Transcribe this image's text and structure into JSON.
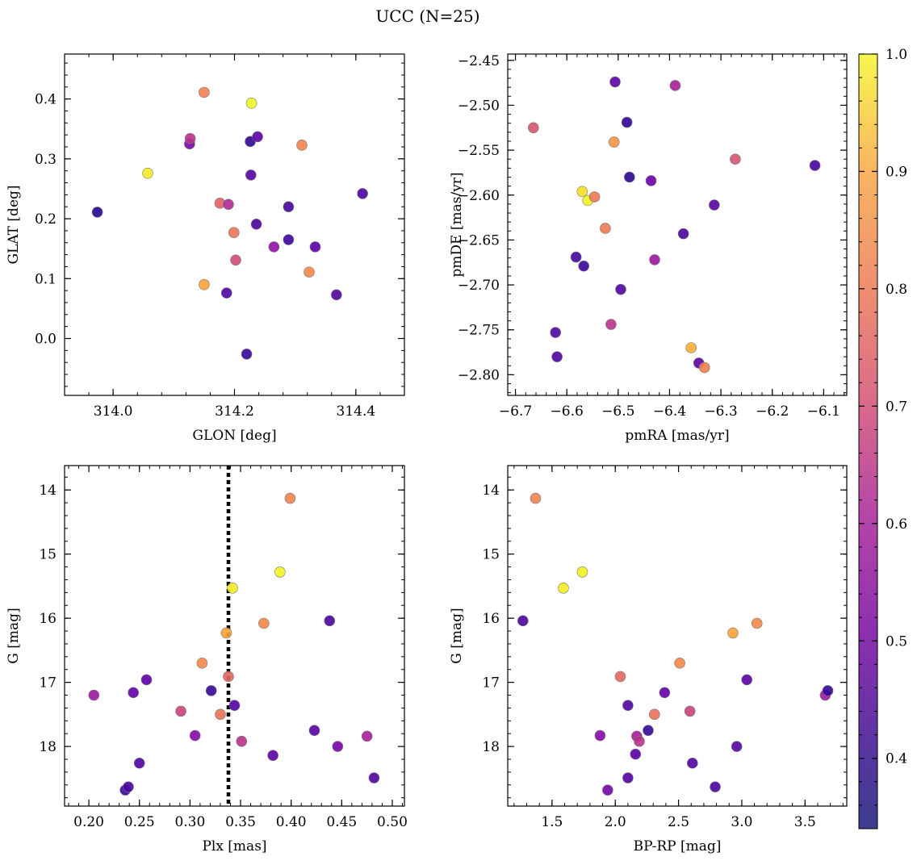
{
  "title": "UCC (N=25)",
  "colorbar": {
    "min": 0.34,
    "max": 1.0,
    "ticks": [
      "0.4",
      "0.5",
      "0.6",
      "0.7",
      "0.8",
      "0.9",
      "1.0"
    ],
    "tick_values": [
      0.4,
      0.5,
      0.6,
      0.7,
      0.8,
      0.9,
      1.0
    ],
    "colormap": "plasma"
  },
  "chart_data": [
    {
      "type": "scatter",
      "xlabel": "GLON [deg]",
      "ylabel": "GLAT [deg]",
      "xlim": [
        313.92,
        314.48
      ],
      "ylim": [
        -0.095,
        0.475
      ],
      "xticks": [
        314.0,
        314.2,
        314.4
      ],
      "xtick_labels": [
        "314.0",
        "314.2",
        "314.4"
      ],
      "yticks": [
        0.0,
        0.1,
        0.2,
        0.3,
        0.4
      ],
      "ytick_labels": [
        "0.0",
        "0.1",
        "0.2",
        "0.3",
        "0.4"
      ],
      "inverted_y": false,
      "points": [
        {
          "x": 313.974,
          "y": 0.211,
          "c": 0.37
        },
        {
          "x": 314.057,
          "y": 0.276,
          "c": 0.98
        },
        {
          "x": 314.126,
          "y": 0.325,
          "c": 0.5
        },
        {
          "x": 314.127,
          "y": 0.334,
          "c": 0.62
        },
        {
          "x": 314.15,
          "y": 0.411,
          "c": 0.79
        },
        {
          "x": 314.15,
          "y": 0.09,
          "c": 0.86
        },
        {
          "x": 314.176,
          "y": 0.226,
          "c": 0.73
        },
        {
          "x": 314.187,
          "y": 0.076,
          "c": 0.43
        },
        {
          "x": 314.19,
          "y": 0.224,
          "c": 0.6
        },
        {
          "x": 314.199,
          "y": 0.177,
          "c": 0.77
        },
        {
          "x": 314.202,
          "y": 0.131,
          "c": 0.68
        },
        {
          "x": 314.22,
          "y": -0.026,
          "c": 0.39
        },
        {
          "x": 314.226,
          "y": 0.329,
          "c": 0.38
        },
        {
          "x": 314.227,
          "y": 0.273,
          "c": 0.44
        },
        {
          "x": 314.228,
          "y": 0.393,
          "c": 1.0
        },
        {
          "x": 314.236,
          "y": 0.191,
          "c": 0.42
        },
        {
          "x": 314.238,
          "y": 0.337,
          "c": 0.45
        },
        {
          "x": 314.265,
          "y": 0.153,
          "c": 0.54
        },
        {
          "x": 314.289,
          "y": 0.22,
          "c": 0.41
        },
        {
          "x": 314.289,
          "y": 0.165,
          "c": 0.4
        },
        {
          "x": 314.311,
          "y": 0.323,
          "c": 0.8
        },
        {
          "x": 314.323,
          "y": 0.111,
          "c": 0.81
        },
        {
          "x": 314.333,
          "y": 0.153,
          "c": 0.45
        },
        {
          "x": 314.368,
          "y": 0.073,
          "c": 0.43
        },
        {
          "x": 314.411,
          "y": 0.242,
          "c": 0.42
        }
      ]
    },
    {
      "type": "scatter",
      "xlabel": "pmRA [mas/yr]",
      "ylabel": "pmDE [mas/yr]",
      "xlim": [
        -6.715,
        -6.055
      ],
      "ylim": [
        -2.823,
        -2.443
      ],
      "xticks": [
        -6.7,
        -6.6,
        -6.5,
        -6.4,
        -6.3,
        -6.2,
        -6.1
      ],
      "xtick_labels": [
        "−6.7",
        "−6.6",
        "−6.5",
        "−6.4",
        "−6.3",
        "−6.2",
        "−6.1"
      ],
      "yticks": [
        -2.8,
        -2.75,
        -2.7,
        -2.65,
        -2.6,
        -2.55,
        -2.5,
        -2.45
      ],
      "ytick_labels": [
        "−2.80",
        "−2.75",
        "−2.70",
        "−2.65",
        "−2.60",
        "−2.55",
        "−2.50",
        "−2.45"
      ],
      "inverted_y": false,
      "points": [
        {
          "x": -6.665,
          "y": -2.525,
          "c": 0.7
        },
        {
          "x": -6.622,
          "y": -2.753,
          "c": 0.43
        },
        {
          "x": -6.619,
          "y": -2.78,
          "c": 0.42
        },
        {
          "x": -6.582,
          "y": -2.669,
          "c": 0.41
        },
        {
          "x": -6.57,
          "y": -2.596,
          "c": 0.96
        },
        {
          "x": -6.567,
          "y": -2.679,
          "c": 0.4
        },
        {
          "x": -6.559,
          "y": -2.606,
          "c": 0.99
        },
        {
          "x": -6.546,
          "y": -2.602,
          "c": 0.78
        },
        {
          "x": -6.525,
          "y": -2.637,
          "c": 0.78
        },
        {
          "x": -6.514,
          "y": -2.744,
          "c": 0.62
        },
        {
          "x": -6.508,
          "y": -2.541,
          "c": 0.83
        },
        {
          "x": -6.506,
          "y": -2.474,
          "c": 0.45
        },
        {
          "x": -6.495,
          "y": -2.705,
          "c": 0.43
        },
        {
          "x": -6.483,
          "y": -2.519,
          "c": 0.38
        },
        {
          "x": -6.478,
          "y": -2.58,
          "c": 0.38
        },
        {
          "x": -6.436,
          "y": -2.584,
          "c": 0.47
        },
        {
          "x": -6.429,
          "y": -2.672,
          "c": 0.56
        },
        {
          "x": -6.389,
          "y": -2.478,
          "c": 0.58
        },
        {
          "x": -6.373,
          "y": -2.643,
          "c": 0.42
        },
        {
          "x": -6.358,
          "y": -2.77,
          "c": 0.88
        },
        {
          "x": -6.343,
          "y": -2.787,
          "c": 0.45
        },
        {
          "x": -6.332,
          "y": -2.792,
          "c": 0.79
        },
        {
          "x": -6.313,
          "y": -2.611,
          "c": 0.44
        },
        {
          "x": -6.272,
          "y": -2.56,
          "c": 0.7
        },
        {
          "x": -6.117,
          "y": -2.567,
          "c": 0.42
        }
      ]
    },
    {
      "type": "scatter",
      "xlabel": "Plx [mas]",
      "ylabel": "G [mag]",
      "xlim": [
        0.176,
        0.512
      ],
      "ylim": [
        18.93,
        13.62
      ],
      "xticks": [
        0.2,
        0.25,
        0.3,
        0.35,
        0.4,
        0.45,
        0.5
      ],
      "xtick_labels": [
        "0.20",
        "0.25",
        "0.30",
        "0.35",
        "0.40",
        "0.45",
        "0.50"
      ],
      "yticks": [
        14,
        15,
        16,
        17,
        18
      ],
      "ytick_labels": [
        "14",
        "15",
        "16",
        "17",
        "18"
      ],
      "inverted_y": true,
      "vline": 0.338,
      "points": [
        {
          "x": 0.205,
          "y": 17.2,
          "c": 0.56
        },
        {
          "x": 0.236,
          "y": 18.68,
          "c": 0.4
        },
        {
          "x": 0.239,
          "y": 18.63,
          "c": 0.42
        },
        {
          "x": 0.244,
          "y": 17.16,
          "c": 0.46
        },
        {
          "x": 0.25,
          "y": 18.26,
          "c": 0.43
        },
        {
          "x": 0.257,
          "y": 16.96,
          "c": 0.45
        },
        {
          "x": 0.291,
          "y": 17.45,
          "c": 0.66
        },
        {
          "x": 0.305,
          "y": 17.83,
          "c": 0.52
        },
        {
          "x": 0.312,
          "y": 16.7,
          "c": 0.81
        },
        {
          "x": 0.321,
          "y": 17.13,
          "c": 0.39
        },
        {
          "x": 0.33,
          "y": 17.5,
          "c": 0.76
        },
        {
          "x": 0.336,
          "y": 16.23,
          "c": 0.86
        },
        {
          "x": 0.338,
          "y": 16.91,
          "c": 0.74
        },
        {
          "x": 0.342,
          "y": 15.53,
          "c": 0.98
        },
        {
          "x": 0.344,
          "y": 17.36,
          "c": 0.43
        },
        {
          "x": 0.351,
          "y": 17.92,
          "c": 0.62
        },
        {
          "x": 0.373,
          "y": 16.08,
          "c": 0.81
        },
        {
          "x": 0.382,
          "y": 18.14,
          "c": 0.45
        },
        {
          "x": 0.389,
          "y": 15.28,
          "c": 0.99
        },
        {
          "x": 0.399,
          "y": 14.13,
          "c": 0.8
        },
        {
          "x": 0.423,
          "y": 17.75,
          "c": 0.44
        },
        {
          "x": 0.438,
          "y": 16.04,
          "c": 0.42
        },
        {
          "x": 0.446,
          "y": 18.0,
          "c": 0.49
        },
        {
          "x": 0.475,
          "y": 17.84,
          "c": 0.58
        },
        {
          "x": 0.482,
          "y": 18.49,
          "c": 0.43
        }
      ]
    },
    {
      "type": "scatter",
      "xlabel": "BP-RP [mag]",
      "ylabel": "G [mag]",
      "xlim": [
        1.15,
        3.83
      ],
      "ylim": [
        18.93,
        13.62
      ],
      "xticks": [
        1.5,
        2.0,
        2.5,
        3.0,
        3.5
      ],
      "xtick_labels": [
        "1.5",
        "2.0",
        "2.5",
        "3.0",
        "3.5"
      ],
      "yticks": [
        14,
        15,
        16,
        17,
        18
      ],
      "ytick_labels": [
        "14",
        "15",
        "16",
        "17",
        "18"
      ],
      "inverted_y": true,
      "points": [
        {
          "x": 1.27,
          "y": 16.04,
          "c": 0.42
        },
        {
          "x": 1.37,
          "y": 14.13,
          "c": 0.8
        },
        {
          "x": 1.59,
          "y": 15.53,
          "c": 0.98
        },
        {
          "x": 1.74,
          "y": 15.28,
          "c": 0.99
        },
        {
          "x": 1.88,
          "y": 17.83,
          "c": 0.52
        },
        {
          "x": 1.94,
          "y": 18.68,
          "c": 0.49
        },
        {
          "x": 2.04,
          "y": 16.91,
          "c": 0.74
        },
        {
          "x": 2.1,
          "y": 18.49,
          "c": 0.43
        },
        {
          "x": 2.1,
          "y": 17.36,
          "c": 0.43
        },
        {
          "x": 2.16,
          "y": 18.12,
          "c": 0.45
        },
        {
          "x": 2.17,
          "y": 17.84,
          "c": 0.58
        },
        {
          "x": 2.19,
          "y": 17.92,
          "c": 0.62
        },
        {
          "x": 2.26,
          "y": 17.75,
          "c": 0.39
        },
        {
          "x": 2.31,
          "y": 17.5,
          "c": 0.76
        },
        {
          "x": 2.39,
          "y": 17.16,
          "c": 0.46
        },
        {
          "x": 2.51,
          "y": 16.7,
          "c": 0.81
        },
        {
          "x": 2.59,
          "y": 17.45,
          "c": 0.66
        },
        {
          "x": 2.61,
          "y": 18.26,
          "c": 0.43
        },
        {
          "x": 2.79,
          "y": 18.63,
          "c": 0.42
        },
        {
          "x": 2.93,
          "y": 16.23,
          "c": 0.86
        },
        {
          "x": 2.96,
          "y": 18.0,
          "c": 0.44
        },
        {
          "x": 3.04,
          "y": 16.96,
          "c": 0.45
        },
        {
          "x": 3.12,
          "y": 16.08,
          "c": 0.81
        },
        {
          "x": 3.66,
          "y": 17.2,
          "c": 0.56
        },
        {
          "x": 3.68,
          "y": 17.13,
          "c": 0.39
        }
      ]
    }
  ]
}
